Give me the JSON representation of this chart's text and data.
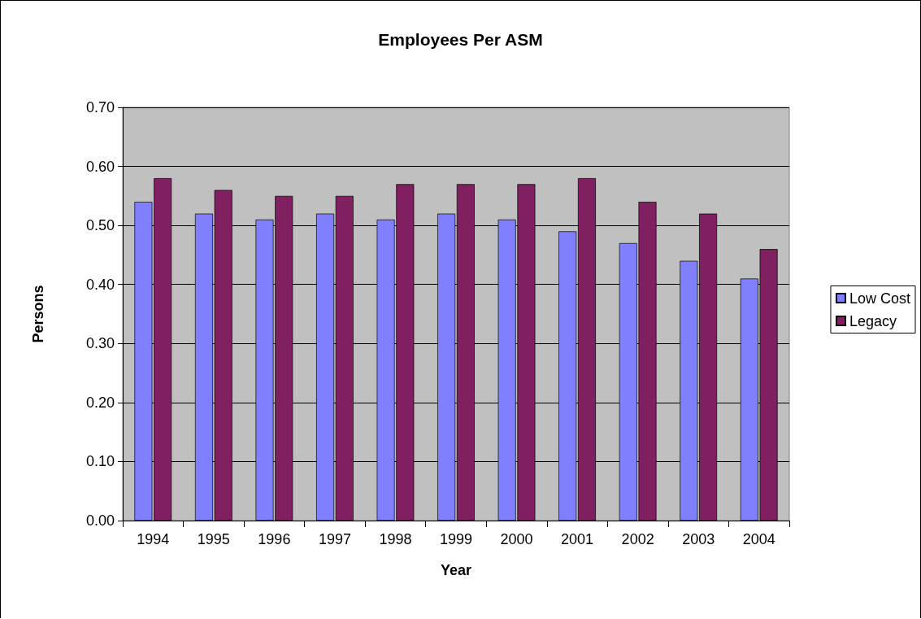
{
  "chart_data": {
    "type": "bar",
    "title": "Employees Per ASM",
    "xlabel": "Year",
    "ylabel": "Persons",
    "categories": [
      "1994",
      "1995",
      "1996",
      "1997",
      "1998",
      "1999",
      "2000",
      "2001",
      "2002",
      "2003",
      "2004"
    ],
    "series": [
      {
        "name": "Low Cost",
        "color": "#8080ff",
        "values": [
          0.54,
          0.52,
          0.51,
          0.52,
          0.51,
          0.52,
          0.51,
          0.49,
          0.47,
          0.44,
          0.41
        ]
      },
      {
        "name": "Legacy",
        "color": "#802060",
        "values": [
          0.58,
          0.56,
          0.55,
          0.55,
          0.57,
          0.57,
          0.57,
          0.58,
          0.54,
          0.52,
          0.46
        ]
      }
    ],
    "ylim": [
      0,
      0.7
    ],
    "yticks": [
      {
        "value": 0,
        "label": "0.00"
      },
      {
        "value": 0.1,
        "label": "0.10"
      },
      {
        "value": 0.2,
        "label": "0.20"
      },
      {
        "value": 0.3,
        "label": "0.30"
      },
      {
        "value": 0.4,
        "label": "0.40"
      },
      {
        "value": 0.5,
        "label": "0.50"
      },
      {
        "value": 0.6,
        "label": "0.60"
      },
      {
        "value": 0.7,
        "label": "0.70"
      }
    ],
    "grid": "y",
    "legend": "right"
  }
}
